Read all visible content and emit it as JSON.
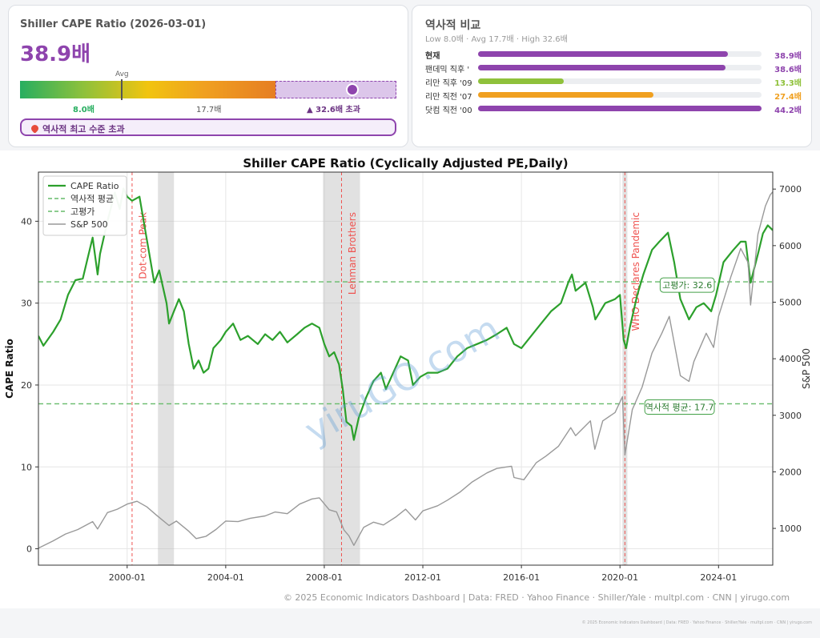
{
  "gauge_card": {
    "title": "Shiller CAPE Ratio (2026-03-01)",
    "value_text": "38.9배",
    "avg_label": "Avg",
    "low_label": "8.0배",
    "avg_value_label": "17.7배",
    "high_label": "▲ 32.6배 초과",
    "badge_text": "역사적 최고 수준 초과",
    "scale": {
      "low": 8.0,
      "avg": 17.7,
      "high": 32.6,
      "current": 38.9,
      "max": 44.2
    }
  },
  "comparison": {
    "title": "역사적 비교",
    "subtitle": "Low 8.0배 · Avg 17.7배 · High 32.6배",
    "max": 44.2,
    "rows": [
      {
        "label": "현재",
        "value": 38.9,
        "value_text": "38.9배",
        "color": "#8e44ad"
      },
      {
        "label": "팬데믹 직후 '",
        "value": 38.6,
        "value_text": "38.6배",
        "color": "#8e44ad"
      },
      {
        "label": "리만 직후 '09",
        "value": 13.3,
        "value_text": "13.3배",
        "color": "#8fc13b"
      },
      {
        "label": "리만 직전 '07",
        "value": 27.4,
        "value_text": "27.4배",
        "color": "#f0a020"
      },
      {
        "label": "닷컴 직전 '00",
        "value": 44.2,
        "value_text": "44.2배",
        "color": "#8e44ad"
      }
    ]
  },
  "chart_data": {
    "type": "line",
    "title": "Shiller CAPE Ratio (Cyclically Adjusted PE,Daily)",
    "ylabel": "CAPE Ratio",
    "y2label": "S&P 500",
    "xlim": [
      1996.4,
      2026.2
    ],
    "ylim": [
      -2,
      46
    ],
    "y2lim": [
      350,
      7300
    ],
    "xticks": [
      2000,
      2004,
      2008,
      2012,
      2016,
      2020,
      2024
    ],
    "xtick_labels": [
      "2000-01",
      "2004-01",
      "2008-01",
      "2012-01",
      "2016-01",
      "2020-01",
      "2024-01"
    ],
    "yticks": [
      0,
      10,
      20,
      30,
      40
    ],
    "y2ticks": [
      1000,
      2000,
      3000,
      4000,
      5000,
      6000,
      7000
    ],
    "grid": true,
    "legend": "top-left",
    "series": [
      {
        "name": "CAPE Ratio",
        "axis": "left",
        "color": "#2ca02c",
        "points": [
          [
            1996.4,
            26
          ],
          [
            1996.6,
            24.8
          ],
          [
            1997.0,
            26.5
          ],
          [
            1997.3,
            28
          ],
          [
            1997.6,
            31
          ],
          [
            1997.9,
            32.8
          ],
          [
            1998.2,
            33
          ],
          [
            1998.4,
            35.5
          ],
          [
            1998.6,
            38
          ],
          [
            1998.8,
            33.5
          ],
          [
            1998.9,
            36
          ],
          [
            1999.2,
            40
          ],
          [
            1999.5,
            43.5
          ],
          [
            1999.7,
            41.5
          ],
          [
            1999.85,
            44
          ],
          [
            2000.0,
            43
          ],
          [
            2000.2,
            42.5
          ],
          [
            2000.5,
            43
          ],
          [
            2000.7,
            39.5
          ],
          [
            2000.9,
            36
          ],
          [
            2001.1,
            32.5
          ],
          [
            2001.3,
            34
          ],
          [
            2001.6,
            30
          ],
          [
            2001.7,
            27.5
          ],
          [
            2001.9,
            29
          ],
          [
            2002.1,
            30.5
          ],
          [
            2002.3,
            29
          ],
          [
            2002.5,
            25
          ],
          [
            2002.7,
            22
          ],
          [
            2002.9,
            23
          ],
          [
            2003.1,
            21.5
          ],
          [
            2003.3,
            22
          ],
          [
            2003.5,
            24.5
          ],
          [
            2003.8,
            25.5
          ],
          [
            2004.0,
            26.5
          ],
          [
            2004.3,
            27.5
          ],
          [
            2004.6,
            25.5
          ],
          [
            2004.9,
            26
          ],
          [
            2005.3,
            25
          ],
          [
            2005.6,
            26.2
          ],
          [
            2005.9,
            25.5
          ],
          [
            2006.2,
            26.5
          ],
          [
            2006.5,
            25.2
          ],
          [
            2006.9,
            26.2
          ],
          [
            2007.2,
            27
          ],
          [
            2007.5,
            27.5
          ],
          [
            2007.8,
            27
          ],
          [
            2008.0,
            25
          ],
          [
            2008.2,
            23.5
          ],
          [
            2008.4,
            24
          ],
          [
            2008.6,
            22.5
          ],
          [
            2008.75,
            19.5
          ],
          [
            2008.9,
            15.5
          ],
          [
            2009.1,
            15
          ],
          [
            2009.2,
            13.3
          ],
          [
            2009.4,
            16
          ],
          [
            2009.7,
            18.5
          ],
          [
            2010.0,
            20.5
          ],
          [
            2010.3,
            21.5
          ],
          [
            2010.5,
            19.5
          ],
          [
            2010.8,
            21.5
          ],
          [
            2011.1,
            23.5
          ],
          [
            2011.4,
            23
          ],
          [
            2011.6,
            20
          ],
          [
            2011.9,
            21
          ],
          [
            2012.2,
            21.5
          ],
          [
            2012.6,
            21.5
          ],
          [
            2013.0,
            22
          ],
          [
            2013.4,
            23.5
          ],
          [
            2013.8,
            24.5
          ],
          [
            2014.2,
            25
          ],
          [
            2014.6,
            25.5
          ],
          [
            2015.0,
            26.2
          ],
          [
            2015.4,
            27
          ],
          [
            2015.7,
            25
          ],
          [
            2016.0,
            24.5
          ],
          [
            2016.4,
            26
          ],
          [
            2016.8,
            27.5
          ],
          [
            2017.2,
            29
          ],
          [
            2017.6,
            30
          ],
          [
            2017.9,
            32.5
          ],
          [
            2018.05,
            33.5
          ],
          [
            2018.2,
            31.5
          ],
          [
            2018.6,
            32.5
          ],
          [
            2018.9,
            29.5
          ],
          [
            2019.0,
            28
          ],
          [
            2019.4,
            30
          ],
          [
            2019.8,
            30.5
          ],
          [
            2020.0,
            31
          ],
          [
            2020.15,
            25.5
          ],
          [
            2020.25,
            24.5
          ],
          [
            2020.4,
            27
          ],
          [
            2020.7,
            31
          ],
          [
            2020.95,
            33.5
          ],
          [
            2021.3,
            36.5
          ],
          [
            2021.6,
            37.5
          ],
          [
            2021.95,
            38.6
          ],
          [
            2022.2,
            35
          ],
          [
            2022.45,
            30.5
          ],
          [
            2022.8,
            28
          ],
          [
            2023.1,
            29.5
          ],
          [
            2023.4,
            30
          ],
          [
            2023.7,
            29
          ],
          [
            2023.9,
            31
          ],
          [
            2024.2,
            35
          ],
          [
            2024.6,
            36.5
          ],
          [
            2024.9,
            37.5
          ],
          [
            2025.1,
            37.5
          ],
          [
            2025.3,
            32.5
          ],
          [
            2025.6,
            36
          ],
          [
            2025.8,
            38.5
          ],
          [
            2026.0,
            39.5
          ],
          [
            2026.2,
            38.9
          ]
        ]
      },
      {
        "name": "S&P 500",
        "axis": "right",
        "color": "#999999",
        "points": [
          [
            1996.4,
            650
          ],
          [
            1997.0,
            780
          ],
          [
            1997.5,
            900
          ],
          [
            1998.0,
            980
          ],
          [
            1998.6,
            1120
          ],
          [
            1998.8,
            990
          ],
          [
            1999.2,
            1280
          ],
          [
            1999.6,
            1340
          ],
          [
            2000.0,
            1430
          ],
          [
            2000.4,
            1480
          ],
          [
            2000.8,
            1380
          ],
          [
            2001.2,
            1230
          ],
          [
            2001.7,
            1050
          ],
          [
            2002.0,
            1130
          ],
          [
            2002.5,
            950
          ],
          [
            2002.8,
            820
          ],
          [
            2003.2,
            860
          ],
          [
            2003.6,
            980
          ],
          [
            2004.0,
            1130
          ],
          [
            2004.5,
            1120
          ],
          [
            2005.0,
            1180
          ],
          [
            2005.6,
            1220
          ],
          [
            2006.0,
            1290
          ],
          [
            2006.5,
            1260
          ],
          [
            2007.0,
            1430
          ],
          [
            2007.5,
            1520
          ],
          [
            2007.8,
            1540
          ],
          [
            2008.2,
            1330
          ],
          [
            2008.5,
            1290
          ],
          [
            2008.8,
            970
          ],
          [
            2009.0,
            870
          ],
          [
            2009.2,
            700
          ],
          [
            2009.6,
            1020
          ],
          [
            2010.0,
            1110
          ],
          [
            2010.4,
            1060
          ],
          [
            2010.9,
            1200
          ],
          [
            2011.3,
            1340
          ],
          [
            2011.7,
            1150
          ],
          [
            2012.0,
            1310
          ],
          [
            2012.6,
            1400
          ],
          [
            2013.0,
            1500
          ],
          [
            2013.5,
            1640
          ],
          [
            2014.0,
            1820
          ],
          [
            2014.6,
            1980
          ],
          [
            2015.0,
            2060
          ],
          [
            2015.6,
            2100
          ],
          [
            2015.7,
            1900
          ],
          [
            2016.1,
            1860
          ],
          [
            2016.6,
            2160
          ],
          [
            2017.0,
            2280
          ],
          [
            2017.5,
            2450
          ],
          [
            2018.0,
            2780
          ],
          [
            2018.2,
            2640
          ],
          [
            2018.8,
            2900
          ],
          [
            2018.98,
            2400
          ],
          [
            2019.3,
            2900
          ],
          [
            2019.8,
            3050
          ],
          [
            2020.1,
            3330
          ],
          [
            2020.2,
            2300
          ],
          [
            2020.5,
            3100
          ],
          [
            2020.9,
            3500
          ],
          [
            2021.3,
            4100
          ],
          [
            2021.7,
            4450
          ],
          [
            2022.0,
            4750
          ],
          [
            2022.45,
            3700
          ],
          [
            2022.8,
            3600
          ],
          [
            2023.0,
            3950
          ],
          [
            2023.5,
            4450
          ],
          [
            2023.8,
            4200
          ],
          [
            2024.0,
            4750
          ],
          [
            2024.5,
            5450
          ],
          [
            2024.9,
            5950
          ],
          [
            2025.2,
            5700
          ],
          [
            2025.3,
            4950
          ],
          [
            2025.6,
            6200
          ],
          [
            2025.9,
            6700
          ],
          [
            2026.1,
            6900
          ],
          [
            2026.2,
            6950
          ]
        ]
      }
    ],
    "reference_lines": [
      {
        "name": "역사적 평균",
        "value": 17.7,
        "label": "역사적 평균: 17.7",
        "color": "#66bb6a"
      },
      {
        "name": "고평가",
        "value": 32.6,
        "label": "고평가: 32.6",
        "color": "#66bb6a"
      }
    ],
    "shaded_periods": [
      [
        2001.25,
        2001.9
      ],
      [
        2007.95,
        2009.45
      ],
      [
        2020.1,
        2020.3
      ]
    ],
    "events": [
      {
        "label": "Dot-com Peak",
        "x": 2000.2
      },
      {
        "label": "Lehman Brothers",
        "x": 2008.7
      },
      {
        "label": "WHO Declares Pandemic",
        "x": 2020.2
      }
    ],
    "watermark": "yiruGO.com",
    "footer": "© 2025 Economic Indicators Dashboard  |  Data: FRED · Yahoo Finance · Shiller/Yale · multpl.com · CNN  |  yirugo.com"
  }
}
